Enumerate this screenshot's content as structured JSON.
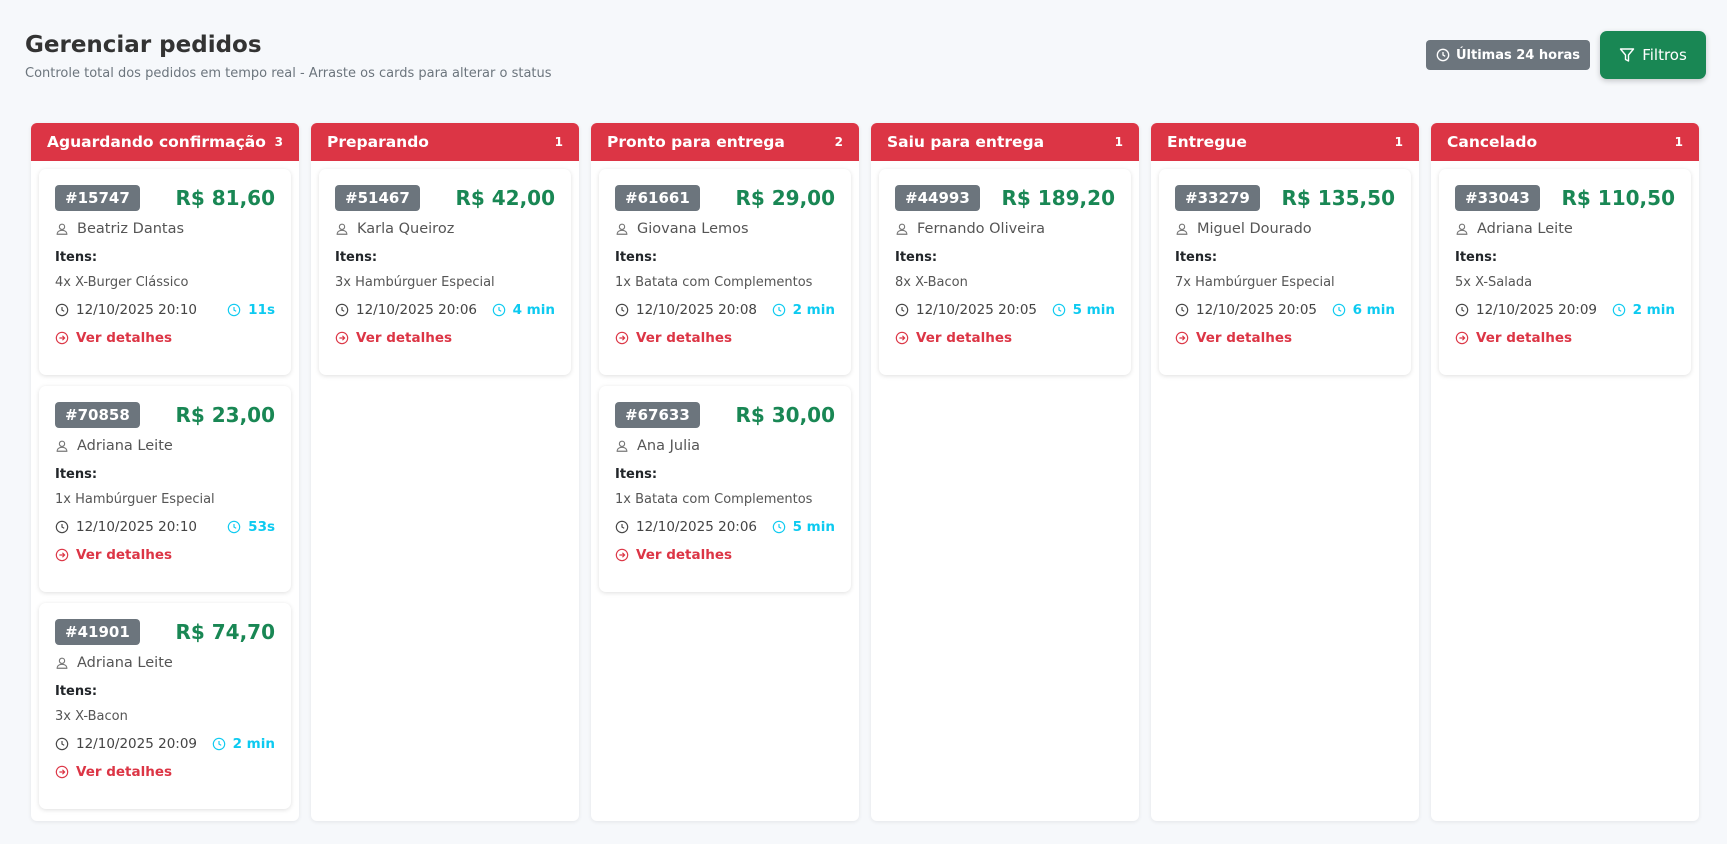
{
  "header": {
    "title": "Gerenciar pedidos",
    "subtitle": "Controle total dos pedidos em tempo real - Arraste os cards para alterar o status",
    "time_badge": "Últimas 24 horas",
    "filter_button": "Filtros"
  },
  "columns": [
    {
      "title": "Aguardando confirmação",
      "count": 3,
      "cards": [
        {
          "id": "#15747",
          "price": "R$ 81,60",
          "customer": "Beatriz Dantas",
          "items_label": "Itens:",
          "items": "4x X-Burger Clássico",
          "datetime": "12/10/2025 20:10",
          "elapsed": "11s",
          "link": "Ver detalhes"
        },
        {
          "id": "#70858",
          "price": "R$ 23,00",
          "customer": "Adriana Leite",
          "items_label": "Itens:",
          "items": "1x Hambúrguer Especial",
          "datetime": "12/10/2025 20:10",
          "elapsed": "53s",
          "link": "Ver detalhes"
        },
        {
          "id": "#41901",
          "price": "R$ 74,70",
          "customer": "Adriana Leite",
          "items_label": "Itens:",
          "items": "3x X-Bacon",
          "datetime": "12/10/2025 20:09",
          "elapsed": "2 min",
          "link": "Ver detalhes"
        }
      ]
    },
    {
      "title": "Preparando",
      "count": 1,
      "cards": [
        {
          "id": "#51467",
          "price": "R$ 42,00",
          "customer": "Karla Queiroz",
          "items_label": "Itens:",
          "items": "3x Hambúrguer Especial",
          "datetime": "12/10/2025 20:06",
          "elapsed": "4 min",
          "link": "Ver detalhes"
        }
      ]
    },
    {
      "title": "Pronto para entrega",
      "count": 2,
      "cards": [
        {
          "id": "#61661",
          "price": "R$ 29,00",
          "customer": "Giovana Lemos",
          "items_label": "Itens:",
          "items": "1x Batata com Complementos",
          "datetime": "12/10/2025 20:08",
          "elapsed": "2 min",
          "link": "Ver detalhes"
        },
        {
          "id": "#67633",
          "price": "R$ 30,00",
          "customer": "Ana Julia",
          "items_label": "Itens:",
          "items": "1x Batata com Complementos",
          "datetime": "12/10/2025 20:06",
          "elapsed": "5 min",
          "link": "Ver detalhes"
        }
      ]
    },
    {
      "title": "Saiu para entrega",
      "count": 1,
      "cards": [
        {
          "id": "#44993",
          "price": "R$ 189,20",
          "customer": "Fernando Oliveira",
          "items_label": "Itens:",
          "items": "8x X-Bacon",
          "datetime": "12/10/2025 20:05",
          "elapsed": "5 min",
          "link": "Ver detalhes"
        }
      ]
    },
    {
      "title": "Entregue",
      "count": 1,
      "cards": [
        {
          "id": "#33279",
          "price": "R$ 135,50",
          "customer": "Miguel Dourado",
          "items_label": "Itens:",
          "items": "7x Hambúrguer Especial",
          "datetime": "12/10/2025 20:05",
          "elapsed": "6 min",
          "link": "Ver detalhes"
        }
      ]
    },
    {
      "title": "Cancelado",
      "count": 1,
      "cards": [
        {
          "id": "#33043",
          "price": "R$ 110,50",
          "customer": "Adriana Leite",
          "items_label": "Itens:",
          "items": "5x X-Salada",
          "datetime": "12/10/2025 20:09",
          "elapsed": "2 min",
          "link": "Ver detalhes"
        }
      ]
    }
  ]
}
